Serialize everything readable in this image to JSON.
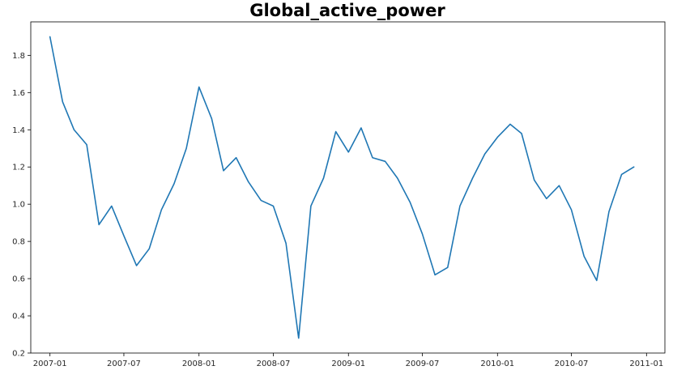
{
  "chart_data": {
    "type": "line",
    "title": "Global_active_power",
    "xlabel": "",
    "ylabel": "",
    "x": [
      "2007-01",
      "2007-02",
      "2007-03",
      "2007-04",
      "2007-05",
      "2007-06",
      "2007-07",
      "2007-08",
      "2007-09",
      "2007-10",
      "2007-11",
      "2007-12",
      "2008-01",
      "2008-02",
      "2008-03",
      "2008-04",
      "2008-05",
      "2008-06",
      "2008-07",
      "2008-08",
      "2008-09",
      "2008-10",
      "2008-11",
      "2008-12",
      "2009-01",
      "2009-02",
      "2009-03",
      "2009-04",
      "2009-05",
      "2009-06",
      "2009-07",
      "2009-08",
      "2009-09",
      "2009-10",
      "2009-11",
      "2009-12",
      "2010-01",
      "2010-02",
      "2010-03",
      "2010-04",
      "2010-05",
      "2010-06",
      "2010-07",
      "2010-08",
      "2010-09",
      "2010-10",
      "2010-11",
      "2010-12"
    ],
    "series": [
      {
        "values": [
          1.9,
          1.55,
          1.4,
          1.32,
          0.89,
          0.99,
          0.83,
          0.67,
          0.76,
          0.97,
          1.11,
          1.3,
          1.63,
          1.46,
          1.18,
          1.25,
          1.12,
          1.02,
          0.99,
          0.79,
          0.28,
          0.99,
          1.14,
          1.39,
          1.28,
          1.41,
          1.25,
          1.23,
          1.14,
          1.01,
          0.84,
          0.62,
          0.66,
          0.99,
          1.14,
          1.27,
          1.36,
          1.43,
          1.38,
          1.13,
          1.03,
          1.1,
          0.97,
          0.72,
          0.59,
          0.96,
          1.16,
          1.2
        ]
      }
    ],
    "xticks": [
      "2007-01",
      "2007-07",
      "2008-01",
      "2008-07",
      "2009-01",
      "2009-07",
      "2010-01",
      "2010-07",
      "2011-01"
    ],
    "yticks": [
      0.2,
      0.4,
      0.6,
      0.8,
      1.0,
      1.2,
      1.4,
      1.6,
      1.8
    ],
    "ytick_labels": [
      "0.2",
      "0.4",
      "0.6",
      "0.8",
      "1.0",
      "1.2",
      "1.4",
      "1.6",
      "1.8"
    ],
    "xlim": [
      "2006-11-15",
      "2011-02-15"
    ],
    "ylim": [
      0.2,
      1.98
    ],
    "grid": false,
    "colors": {
      "line": "#1f77b4"
    }
  }
}
